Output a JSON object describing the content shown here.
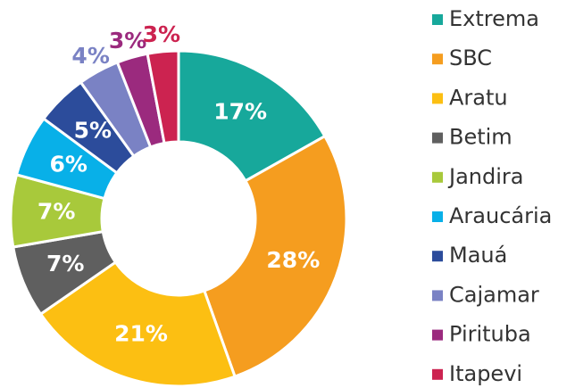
{
  "chart_data": {
    "type": "donut",
    "categories": [
      "Extrema",
      "SBC",
      "Aratu",
      "Betim",
      "Jandira",
      "Araucária",
      "Mauá",
      "Cajamar",
      "Pirituba",
      "Itapevi"
    ],
    "values": [
      17,
      28,
      21,
      7,
      7,
      6,
      5,
      4,
      3,
      3
    ],
    "value_labels": [
      "17%",
      "28%",
      "21%",
      "7%",
      "7%",
      "6%",
      "5%",
      "4%",
      "3%",
      "3%"
    ],
    "colors": [
      "#17a89b",
      "#f59d1f",
      "#fcbf12",
      "#5f5f5f",
      "#a8c93b",
      "#08b0e8",
      "#2c4c9b",
      "#7a82c4",
      "#9b2a7e",
      "#cc2350"
    ],
    "legend": "right"
  }
}
